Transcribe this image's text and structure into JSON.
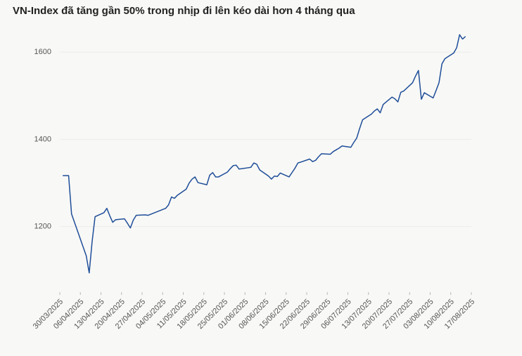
{
  "chart_data": {
    "type": "line",
    "title": "VN-Index đã tăng gần 50% trong nhịp đi lên kéo dài hơn 4 tháng qua",
    "x": [
      "2025-03-31",
      "2025-04-02",
      "2025-04-03",
      "2025-04-04",
      "2025-04-08",
      "2025-04-09",
      "2025-04-10",
      "2025-04-11",
      "2025-04-14",
      "2025-04-15",
      "2025-04-16",
      "2025-04-17",
      "2025-04-18",
      "2025-04-21",
      "2025-04-22",
      "2025-04-23",
      "2025-04-24",
      "2025-04-25",
      "2025-04-28",
      "2025-04-29",
      "2025-05-05",
      "2025-05-06",
      "2025-05-07",
      "2025-05-08",
      "2025-05-09",
      "2025-05-12",
      "2025-05-13",
      "2025-05-14",
      "2025-05-15",
      "2025-05-16",
      "2025-05-19",
      "2025-05-20",
      "2025-05-21",
      "2025-05-22",
      "2025-05-23",
      "2025-05-26",
      "2025-05-27",
      "2025-05-28",
      "2025-05-29",
      "2025-05-30",
      "2025-06-02",
      "2025-06-03",
      "2025-06-04",
      "2025-06-05",
      "2025-06-06",
      "2025-06-09",
      "2025-06-10",
      "2025-06-11",
      "2025-06-12",
      "2025-06-13",
      "2025-06-16",
      "2025-06-17",
      "2025-06-18",
      "2025-06-19",
      "2025-06-20",
      "2025-06-23",
      "2025-06-24",
      "2025-06-25",
      "2025-06-26",
      "2025-06-27",
      "2025-06-30",
      "2025-07-01",
      "2025-07-02",
      "2025-07-03",
      "2025-07-04",
      "2025-07-07",
      "2025-07-08",
      "2025-07-09",
      "2025-07-10",
      "2025-07-11",
      "2025-07-14",
      "2025-07-15",
      "2025-07-16",
      "2025-07-17",
      "2025-07-18",
      "2025-07-21",
      "2025-07-22",
      "2025-07-23",
      "2025-07-24",
      "2025-07-25",
      "2025-07-28",
      "2025-07-29",
      "2025-07-30",
      "2025-07-31",
      "2025-08-01",
      "2025-08-04",
      "2025-08-05",
      "2025-08-06",
      "2025-08-07",
      "2025-08-08",
      "2025-08-11",
      "2025-08-12",
      "2025-08-13",
      "2025-08-14",
      "2025-08-15"
    ],
    "series": [
      {
        "name": "VN-Index",
        "color": "#1f4e99",
        "values": [
          1317,
          1317,
          1229,
          1210,
          1133,
          1094,
          1166,
          1223,
          1232,
          1242,
          1225,
          1210,
          1216,
          1218,
          1208,
          1197,
          1215,
          1226,
          1227,
          1226,
          1242,
          1250,
          1268,
          1265,
          1272,
          1286,
          1300,
          1309,
          1314,
          1301,
          1296,
          1318,
          1324,
          1314,
          1314,
          1325,
          1333,
          1340,
          1341,
          1332,
          1335,
          1336,
          1346,
          1343,
          1330,
          1316,
          1309,
          1316,
          1315,
          1323,
          1314,
          1324,
          1334,
          1346,
          1348,
          1355,
          1349,
          1352,
          1360,
          1367,
          1366,
          1372,
          1376,
          1380,
          1385,
          1382,
          1393,
          1403,
          1425,
          1445,
          1458,
          1465,
          1470,
          1461,
          1480,
          1497,
          1493,
          1486,
          1508,
          1511,
          1530,
          1545,
          1558,
          1492,
          1507,
          1495,
          1512,
          1530,
          1573,
          1585,
          1598,
          1610,
          1640,
          1630,
          1636
        ]
      }
    ],
    "xlim": [
      "2025-03-30",
      "2025-08-17"
    ],
    "xticks": [
      {
        "value": "2025-03-30",
        "label": "30/03/2025"
      },
      {
        "value": "2025-04-06",
        "label": "06/04/2025"
      },
      {
        "value": "2025-04-13",
        "label": "13/04/2025"
      },
      {
        "value": "2025-04-20",
        "label": "20/04/2025"
      },
      {
        "value": "2025-04-27",
        "label": "27/04/2025"
      },
      {
        "value": "2025-05-04",
        "label": "04/05/2025"
      },
      {
        "value": "2025-05-11",
        "label": "11/05/2025"
      },
      {
        "value": "2025-05-18",
        "label": "18/05/2025"
      },
      {
        "value": "2025-05-25",
        "label": "25/05/2025"
      },
      {
        "value": "2025-06-01",
        "label": "01/06/2025"
      },
      {
        "value": "2025-06-08",
        "label": "08/06/2025"
      },
      {
        "value": "2025-06-15",
        "label": "15/06/2025"
      },
      {
        "value": "2025-06-22",
        "label": "22/06/2025"
      },
      {
        "value": "2025-06-29",
        "label": "29/06/2025"
      },
      {
        "value": "2025-07-06",
        "label": "06/07/2025"
      },
      {
        "value": "2025-07-13",
        "label": "13/07/2025"
      },
      {
        "value": "2025-07-20",
        "label": "20/07/2025"
      },
      {
        "value": "2025-07-27",
        "label": "27/07/2025"
      },
      {
        "value": "2025-08-03",
        "label": "03/08/2025"
      },
      {
        "value": "2025-08-10",
        "label": "10/08/2025"
      },
      {
        "value": "2025-08-17",
        "label": "17/08/2025"
      }
    ],
    "ylim": [
      1050,
      1660
    ],
    "yticks": [
      1200,
      1400,
      1600
    ],
    "grid": true
  }
}
